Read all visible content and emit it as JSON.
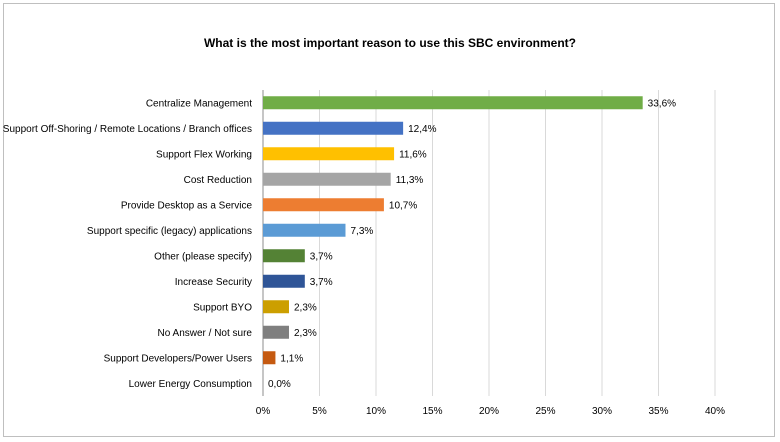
{
  "chart_data": {
    "type": "bar",
    "orientation": "horizontal",
    "title": "What is the most important reason to use this SBC environment?",
    "xlabel": "",
    "ylabel": "",
    "xlim": [
      0,
      40
    ],
    "x_ticks": [
      "0%",
      "5%",
      "10%",
      "15%",
      "20%",
      "25%",
      "30%",
      "35%",
      "40%"
    ],
    "grid": "vertical gridlines",
    "legend": "none",
    "categories": [
      "Centralize Management",
      "Support Off-Shoring / Remote Locations / Branch offices",
      "Support Flex Working",
      "Cost Reduction",
      "Provide Desktop as a Service",
      "Support specific (legacy) applications",
      "Other (please specify)",
      "Increase Security",
      "Support BYO",
      "No Answer / Not sure",
      "Support Developers/Power Users",
      "Lower Energy Consumption"
    ],
    "values": [
      33.6,
      12.4,
      11.6,
      11.3,
      10.7,
      7.3,
      3.7,
      3.7,
      2.3,
      2.3,
      1.1,
      0.0
    ],
    "value_labels": [
      "33,6%",
      "12,4%",
      "11,6%",
      "11,3%",
      "10,7%",
      "7,3%",
      "3,7%",
      "3,7%",
      "2,3%",
      "2,3%",
      "1,1%",
      "0,0%"
    ],
    "colors": [
      "#70ad47",
      "#4472c4",
      "#ffc000",
      "#a5a5a5",
      "#ed7d31",
      "#5b9bd5",
      "#548235",
      "#2f5597",
      "#cc9f00",
      "#7f7f7f",
      "#c55a11",
      "#4472c4"
    ]
  }
}
